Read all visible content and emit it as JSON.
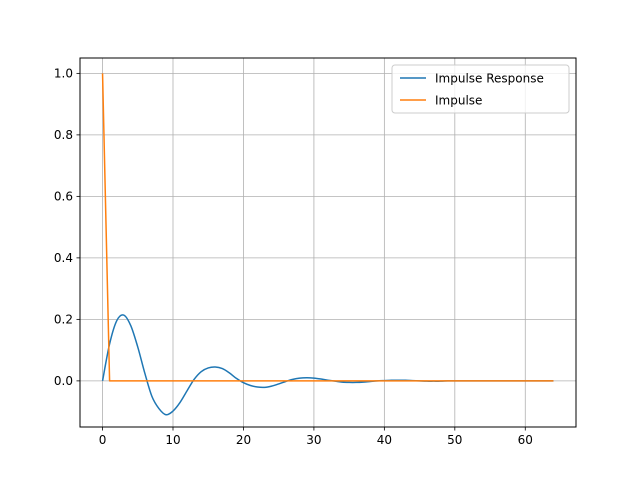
{
  "chart_data": {
    "type": "line",
    "xlim": [
      -3.2,
      67.2
    ],
    "ylim": [
      -0.15,
      1.05
    ],
    "x_ticks": [
      0,
      10,
      20,
      30,
      40,
      50,
      60
    ],
    "y_ticks": [
      0.0,
      0.2,
      0.4,
      0.6,
      0.8,
      1.0
    ],
    "x_tick_labels": [
      "0",
      "10",
      "20",
      "30",
      "40",
      "50",
      "60"
    ],
    "y_tick_labels": [
      "0.0",
      "0.2",
      "0.4",
      "0.6",
      "0.8",
      "1.0"
    ],
    "grid": true,
    "legend_position": "top-right",
    "series": [
      {
        "name": "Impulse Response",
        "color": "#1f77b4",
        "x": [
          0,
          1,
          2,
          3,
          4,
          5,
          6,
          7,
          8,
          9,
          10,
          11,
          12,
          13,
          14,
          15,
          16,
          17,
          18,
          19,
          20,
          21,
          22,
          23,
          24,
          25,
          26,
          27,
          28,
          29,
          30,
          31,
          32,
          33,
          34,
          35,
          36,
          37,
          38,
          39,
          40,
          41,
          42,
          43,
          44,
          45,
          46,
          47,
          48,
          49,
          50,
          51,
          52,
          53,
          54,
          55,
          56,
          57,
          58,
          59,
          60,
          61,
          62,
          63,
          64
        ],
        "values": [
          0.0,
          0.12,
          0.195,
          0.214,
          0.18,
          0.11,
          0.025,
          -0.05,
          -0.09,
          -0.11,
          -0.098,
          -0.07,
          -0.032,
          0.005,
          0.03,
          0.042,
          0.045,
          0.04,
          0.026,
          0.008,
          -0.006,
          -0.015,
          -0.02,
          -0.021,
          -0.017,
          -0.01,
          -0.002,
          0.005,
          0.009,
          0.01,
          0.009,
          0.006,
          0.002,
          -0.001,
          -0.004,
          -0.005,
          -0.005,
          -0.004,
          -0.002,
          0.0,
          0.001,
          0.002,
          0.002,
          0.002,
          0.001,
          0.0,
          -0.001,
          -0.001,
          -0.001,
          0.0,
          0.0,
          0.0,
          0.0,
          0.0,
          0.0,
          0.0,
          0.0,
          0.0,
          0.0,
          0.0,
          0.0,
          0.0,
          0.0,
          0.0,
          0.0
        ]
      },
      {
        "name": "Impulse",
        "color": "#ff7f0e",
        "x": [
          0,
          1,
          64
        ],
        "values": [
          1.0,
          0.0,
          0.0
        ]
      }
    ]
  }
}
